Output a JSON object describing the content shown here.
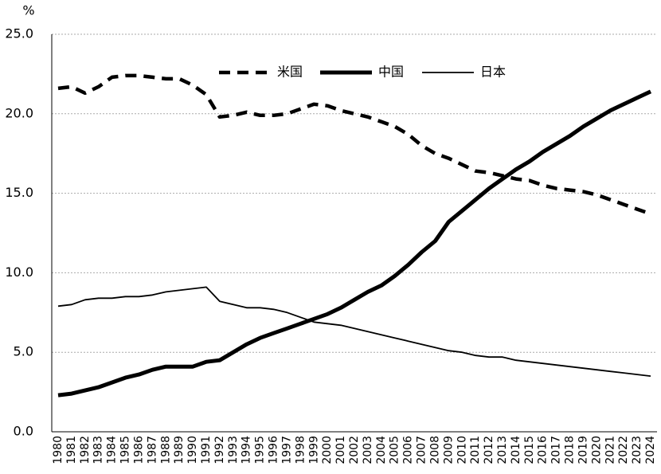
{
  "chart_data": {
    "type": "line",
    "y_unit": "%",
    "categories": [
      "1980",
      "1981",
      "1982",
      "1983",
      "1984",
      "1985",
      "1986",
      "1987",
      "1988",
      "1989",
      "1990",
      "1991",
      "1992",
      "1993",
      "1994",
      "1995",
      "1996",
      "1997",
      "1998",
      "1999",
      "2000",
      "2001",
      "2002",
      "2003",
      "2004",
      "2005",
      "2006",
      "2007",
      "2008",
      "2009",
      "2010",
      "2011",
      "2012",
      "2013",
      "2014",
      "2015",
      "2016",
      "2017",
      "2018",
      "2019",
      "2020",
      "2021",
      "2022",
      "2023",
      "2024"
    ],
    "series": [
      {
        "name": "米国",
        "color": "#000000",
        "style": "dashed",
        "values": [
          21.6,
          21.7,
          21.3,
          21.7,
          22.3,
          22.4,
          22.4,
          22.3,
          22.2,
          22.2,
          21.8,
          21.2,
          19.8,
          19.9,
          20.1,
          19.9,
          19.9,
          20.0,
          20.3,
          20.6,
          20.5,
          20.2,
          20.0,
          19.8,
          19.5,
          19.2,
          18.7,
          18.0,
          17.5,
          17.2,
          16.8,
          16.4,
          16.3,
          16.1,
          15.9,
          15.8,
          15.5,
          15.3,
          15.2,
          15.1,
          14.9,
          14.6,
          14.3,
          14.0,
          13.7
        ]
      },
      {
        "name": "中国",
        "color": "#000000",
        "style": "bold",
        "values": [
          2.3,
          2.4,
          2.6,
          2.8,
          3.1,
          3.4,
          3.6,
          3.9,
          4.1,
          4.1,
          4.1,
          4.4,
          4.5,
          5.0,
          5.5,
          5.9,
          6.2,
          6.5,
          6.8,
          7.1,
          7.4,
          7.8,
          8.3,
          8.8,
          9.2,
          9.8,
          10.5,
          11.3,
          12.0,
          13.2,
          13.9,
          14.6,
          15.3,
          15.9,
          16.5,
          17.0,
          17.6,
          18.1,
          18.6,
          19.2,
          19.7,
          20.2,
          20.6,
          21.0,
          21.4
        ]
      },
      {
        "name": "日本",
        "color": "#000000",
        "style": "thin",
        "values": [
          7.9,
          8.0,
          8.3,
          8.4,
          8.4,
          8.5,
          8.5,
          8.6,
          8.8,
          8.9,
          9.0,
          9.1,
          8.2,
          8.0,
          7.8,
          7.8,
          7.7,
          7.5,
          7.2,
          6.9,
          6.8,
          6.7,
          6.5,
          6.3,
          6.1,
          5.9,
          5.7,
          5.5,
          5.3,
          5.1,
          5.0,
          4.8,
          4.7,
          4.7,
          4.5,
          4.4,
          4.3,
          4.2,
          4.1,
          4.0,
          3.9,
          3.8,
          3.7,
          3.6,
          3.5
        ]
      }
    ],
    "ylim": [
      0,
      25
    ],
    "yticks": [
      {
        "value": 0,
        "label": "0.0"
      },
      {
        "value": 5,
        "label": "5.0"
      },
      {
        "value": 10,
        "label": "10.0"
      },
      {
        "value": 15,
        "label": "15.0"
      },
      {
        "value": 20,
        "label": "20.0"
      },
      {
        "value": 25,
        "label": "25.0"
      }
    ],
    "grid": true,
    "legend": "top"
  }
}
